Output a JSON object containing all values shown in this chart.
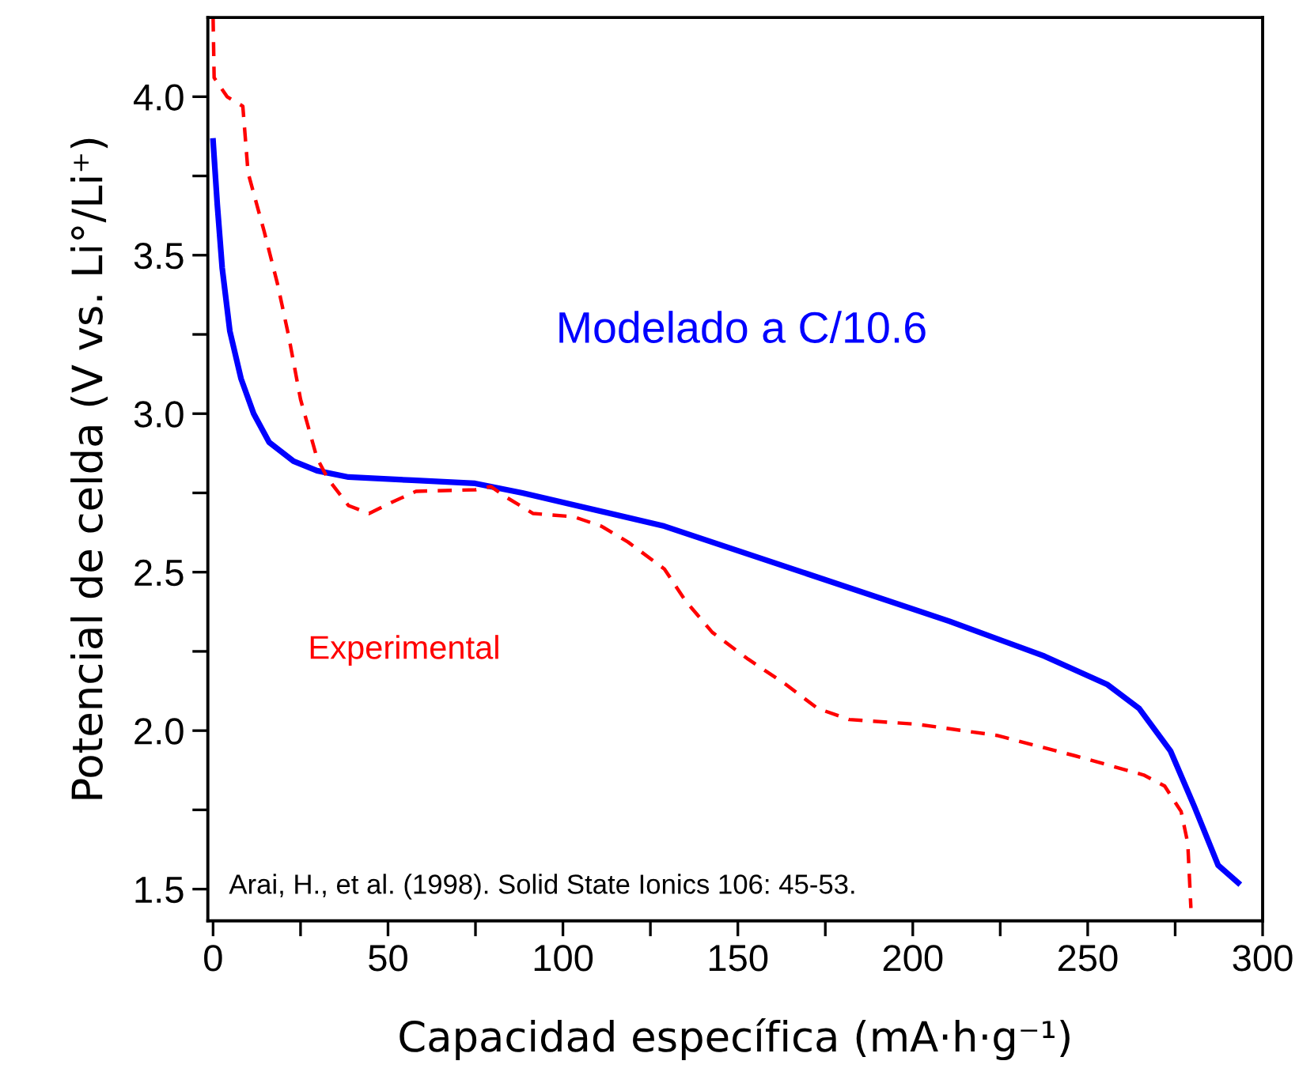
{
  "chart_data": {
    "type": "line",
    "xlabel": "Capacidad específica (mA·h·g⁻¹)",
    "ylabel": "Potencial de celda (V vs. Li°/Li⁺)",
    "xlim": [
      -1.5,
      300
    ],
    "ylim": [
      1.4,
      4.25
    ],
    "xticks": [
      0,
      {
        "value": 25,
        "label": null
      },
      50,
      {
        "value": 75,
        "label": null
      },
      100,
      {
        "value": 125,
        "label": null
      },
      150,
      {
        "value": 175,
        "label": null
      },
      200,
      {
        "value": 225,
        "label": null
      },
      250,
      {
        "value": 275,
        "label": null
      },
      300
    ],
    "yticks": [
      1.5,
      {
        "value": 1.75,
        "label": null
      },
      "2.0",
      {
        "value": 2.25,
        "label": null
      },
      2.5,
      {
        "value": 2.75,
        "label": null
      },
      "3.0",
      {
        "value": 3.25,
        "label": null
      },
      3.5,
      {
        "value": 3.75,
        "label": null
      },
      "4.0"
    ],
    "grid": false,
    "legend": false,
    "annotations": [
      "Arai, H., et al. (1998). Solid State Ionics 106: 45-53."
    ],
    "series": [
      {
        "name": "Modelado a C/10.6",
        "color": "#0000ff",
        "line_style": "solid",
        "x": [
          0,
          1.2,
          2.6,
          4.8,
          8,
          11.6,
          16,
          23,
          29.7,
          38.7,
          56.8,
          74.9,
          88.4,
          129,
          169.8,
          210.5,
          237.6,
          255.7,
          264.7,
          273.7,
          280.5,
          287.3,
          293
        ],
        "values": [
          3.86,
          3.66,
          3.46,
          3.26,
          3.11,
          3.0,
          2.91,
          2.85,
          2.82,
          2.8,
          2.79,
          2.78,
          2.75,
          2.645,
          2.495,
          2.345,
          2.235,
          2.145,
          2.07,
          1.935,
          1.76,
          1.575,
          1.52
        ]
      },
      {
        "name": "Experimental",
        "color": "#ff0000",
        "line_style": "dashed",
        "x": [
          0,
          0.3,
          4,
          8.5,
          10,
          14.6,
          18.4,
          21.6,
          25,
          29.7,
          32.8,
          38.7,
          44.6,
          51,
          58,
          75,
          79.4,
          84,
          91.5,
          103,
          111,
          118.6,
          129,
          135,
          142.7,
          153,
          163.8,
          172.8,
          181.8,
          201.4,
          224,
          246.6,
          266,
          272,
          276.7,
          278.6,
          279.5
        ],
        "values": [
          4.25,
          4.06,
          4.0,
          3.97,
          3.76,
          3.575,
          3.41,
          3.245,
          3.045,
          2.86,
          2.795,
          2.71,
          2.685,
          2.72,
          2.755,
          2.76,
          2.77,
          2.735,
          2.685,
          2.675,
          2.645,
          2.595,
          2.51,
          2.41,
          2.31,
          2.225,
          2.145,
          2.07,
          2.035,
          2.02,
          1.985,
          1.92,
          1.86,
          1.825,
          1.745,
          1.645,
          1.44
        ]
      }
    ]
  }
}
